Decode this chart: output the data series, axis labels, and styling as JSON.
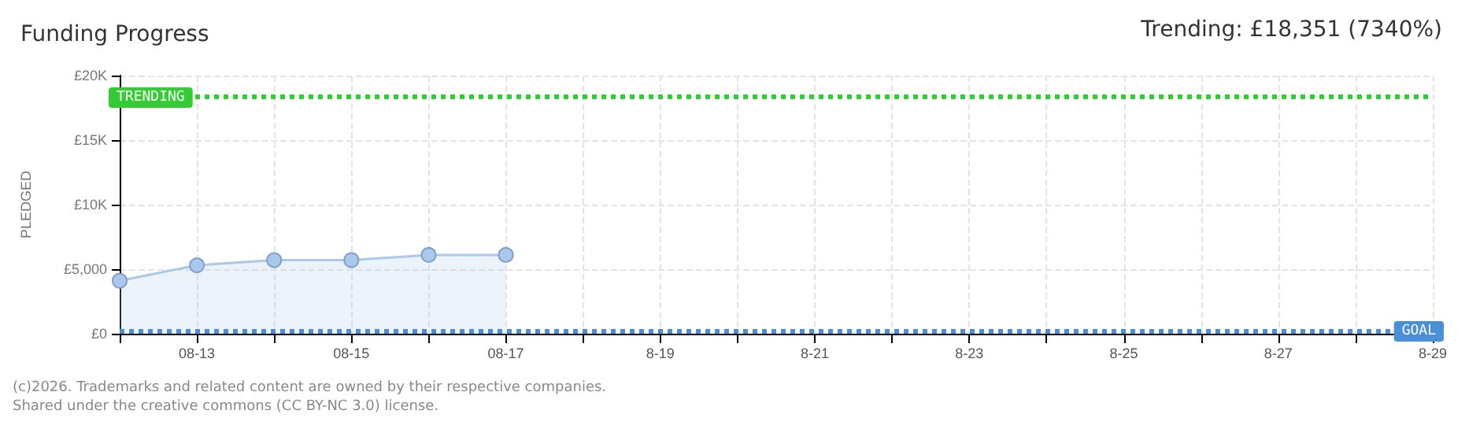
{
  "chart_data": {
    "type": "area",
    "title": "Funding Progress",
    "ylabel": "PLEDGED",
    "annotations": [
      "Trending: £18,351 (7340%)",
      "(c)2026. Trademarks and related content are owned by their respective companies.",
      "Shared under the creative commons (CC BY-NC 3.0) license."
    ],
    "x": [
      "--08-12",
      "--08-13",
      "--08-14",
      "--08-15",
      "--08-16",
      "--08-17"
    ],
    "series": [
      {
        "color": "#a9c8ec",
        "values": [
          4100,
          5300,
          5700,
          5700,
          6100,
          6100
        ]
      }
    ],
    "xlim": [
      "--08-12",
      "--08-29"
    ],
    "xticks": [
      {
        "value": "--08-12",
        "label": null
      },
      {
        "value": "--08-13",
        "label": "08-13"
      },
      {
        "value": "--08-14",
        "label": null
      },
      {
        "value": "--08-15",
        "label": "08-15"
      },
      {
        "value": "--08-16",
        "label": null
      },
      {
        "value": "--08-17",
        "label": "08-17"
      },
      {
        "value": "--08-18",
        "label": null
      },
      {
        "value": "--08-19",
        "label": "8-19"
      },
      {
        "value": "--08-20",
        "label": null
      },
      {
        "value": "--08-21",
        "label": "8-21"
      },
      {
        "value": "--08-22",
        "label": null
      },
      {
        "value": "--08-23",
        "label": "8-23"
      },
      {
        "value": "--08-24",
        "label": null
      },
      {
        "value": "--08-25",
        "label": "8-25"
      },
      {
        "value": "--08-26",
        "label": null
      },
      {
        "value": "--08-27",
        "label": "8-27"
      },
      {
        "value": "--08-28",
        "label": null
      },
      {
        "value": "--08-29",
        "label": "8-29"
      }
    ],
    "ylim": [
      0,
      20000
    ],
    "yticks": [
      {
        "value": 0,
        "label": "£0"
      },
      {
        "value": 5000,
        "label": "£5,000"
      },
      {
        "value": 10000,
        "label": "£10K"
      },
      {
        "value": 15000,
        "label": "£15K"
      },
      {
        "value": 20000,
        "label": "£20K"
      }
    ],
    "ref_lines": [
      {
        "axis": "y",
        "value": 18351,
        "label": "TRENDING",
        "color": "#33cc33",
        "line_style": "dotted"
      },
      {
        "axis": "y",
        "value": 250,
        "label": "GOAL",
        "color": "#4a90d9",
        "line_style": "dotted"
      }
    ],
    "grid": true,
    "marker": "circle",
    "line_style": "solid"
  }
}
